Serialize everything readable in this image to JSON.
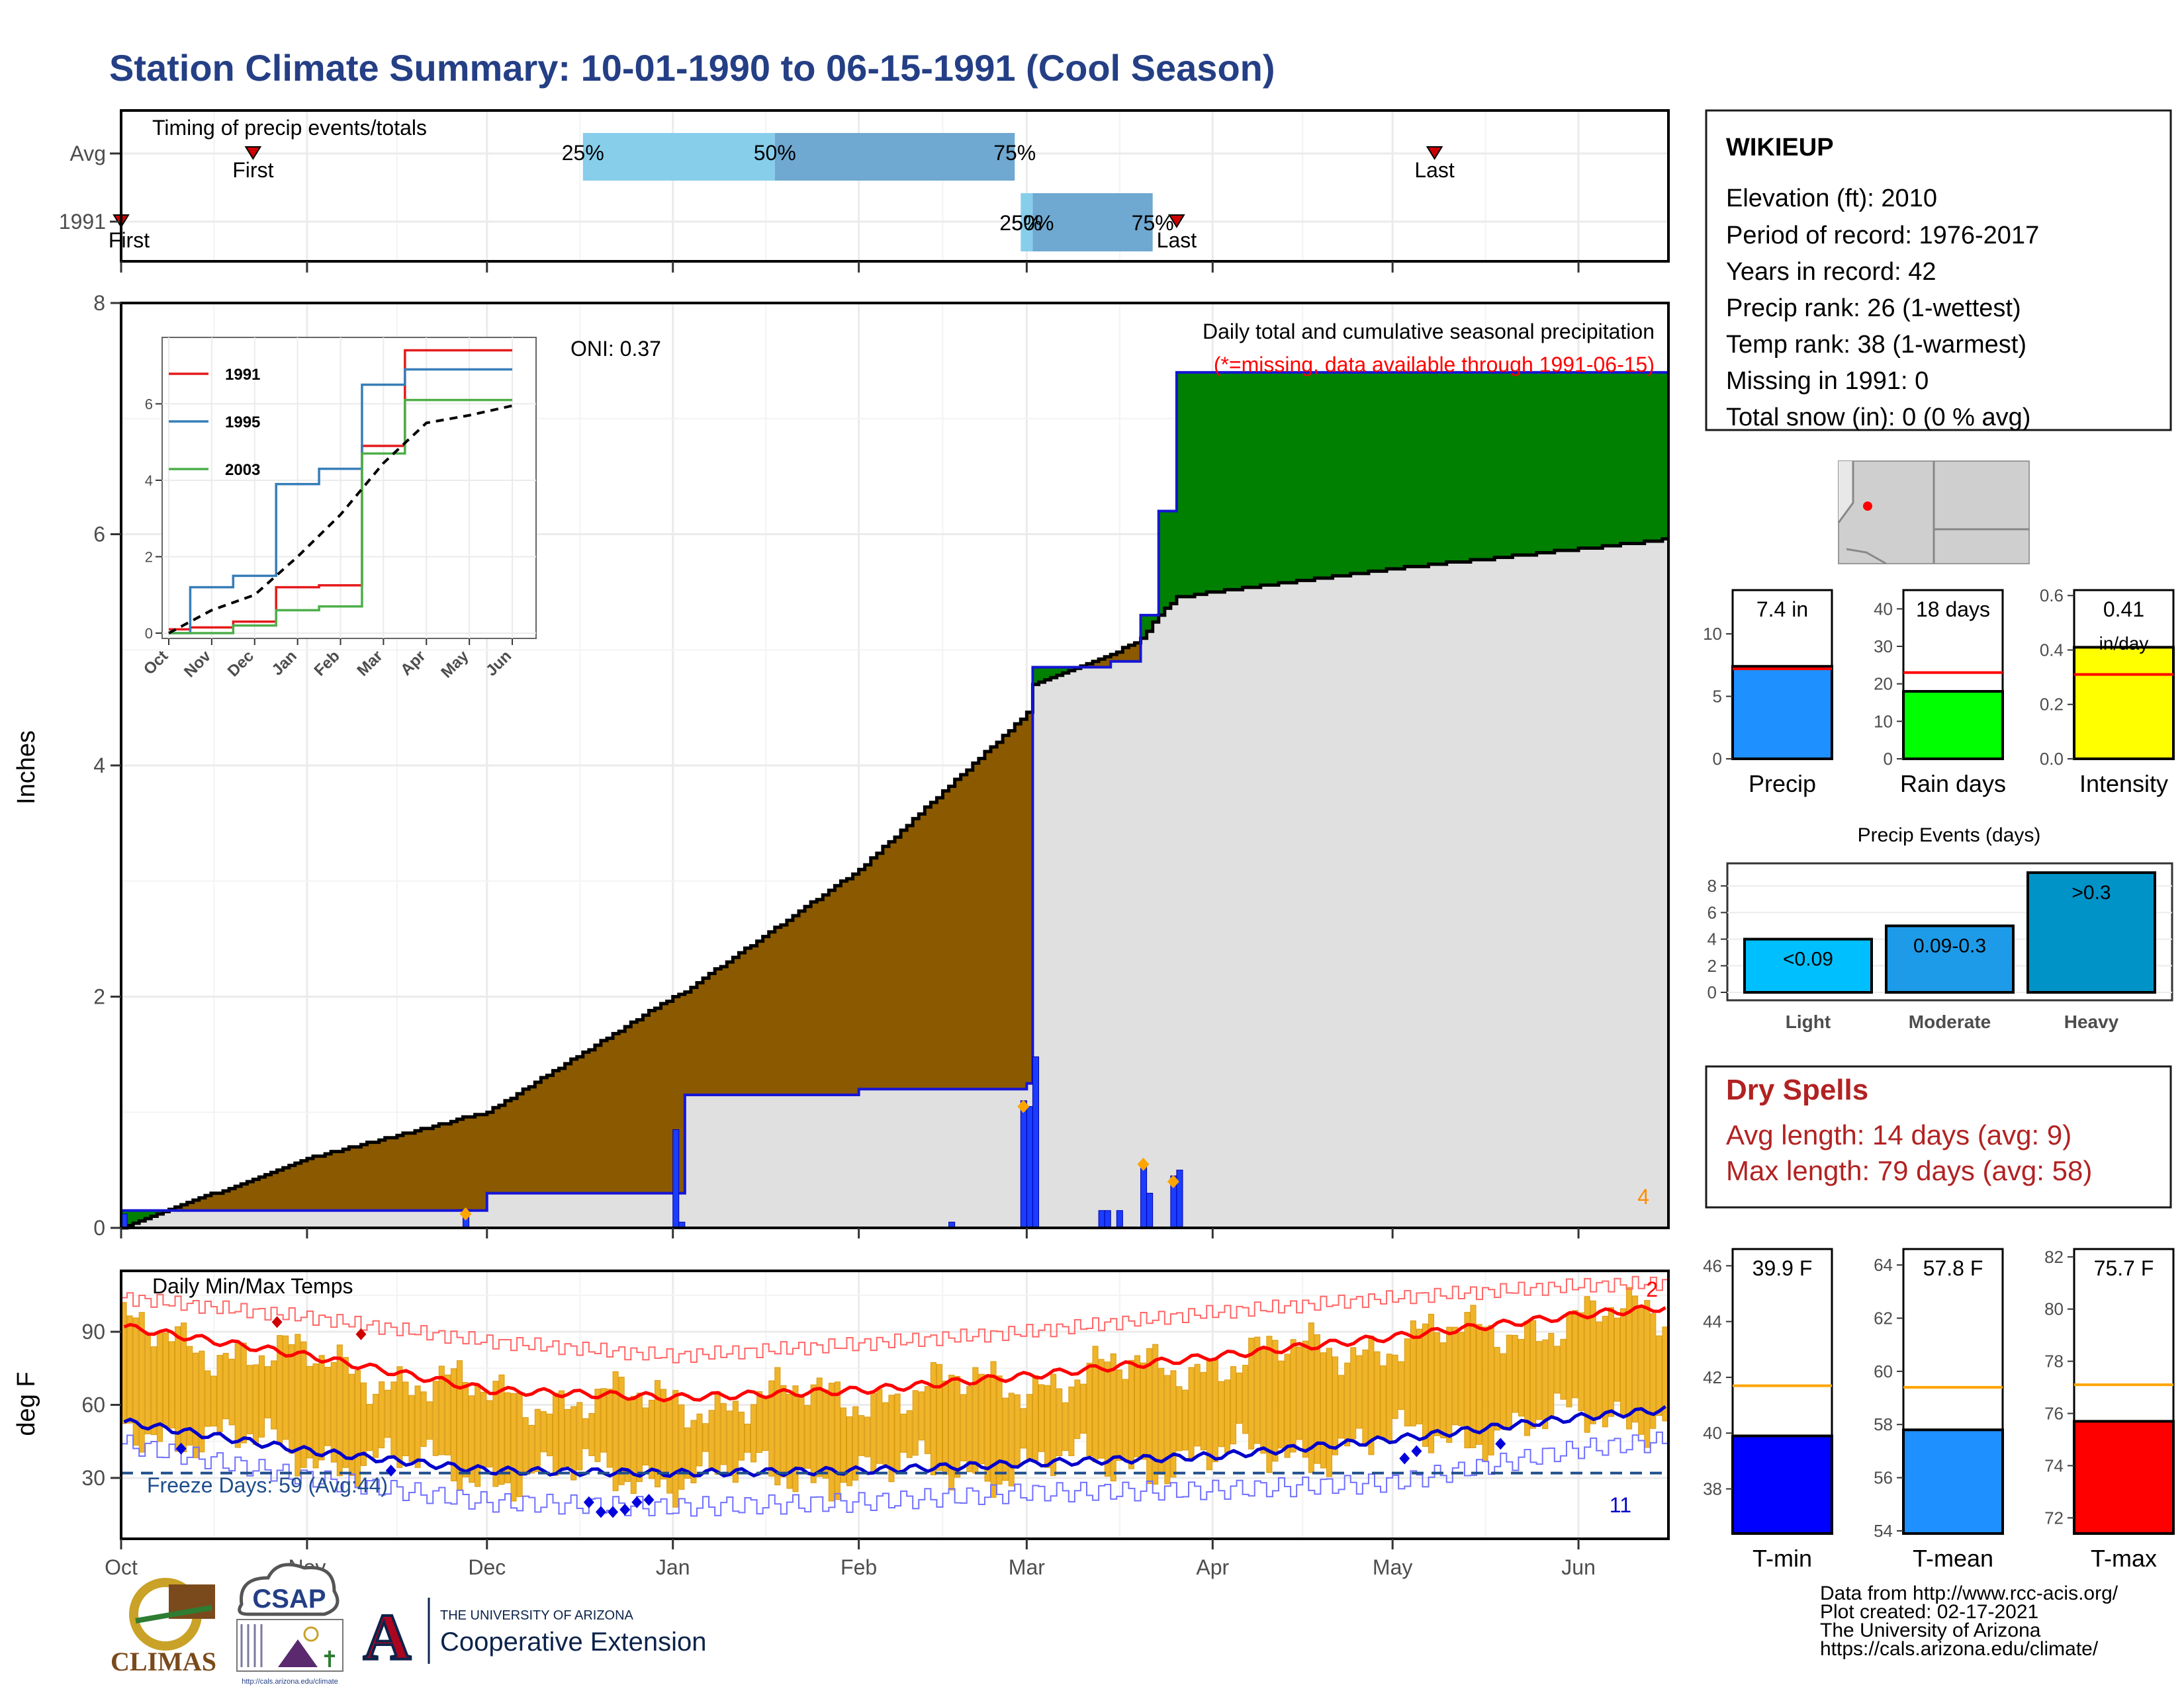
{
  "title": "Station Climate Summary: 10-01-1990 to 06-15-1991 (Cool Season)",
  "colors": {
    "title": "#243f85",
    "avg_precip": "#e0e0e0",
    "deficit": "#8b5a00",
    "surplus": "#008000",
    "season_line": "#1515d6",
    "bars": "#1a3dff",
    "dry": "#b22222",
    "extreme": "#ff8c00"
  },
  "timing": {
    "label": "Timing of precip events/totals",
    "rows": [
      "Avg",
      "1991"
    ],
    "avg": {
      "first": "First",
      "last": "Last",
      "q25": "25%",
      "q50": "50%",
      "q75": "75%",
      "first_date": "1990-10-23",
      "q25_date": "1990-12-17",
      "q50_date": "1991-01-18",
      "q75_date": "1991-02-27",
      "last_date": "1991-05-08"
    },
    "y1991": {
      "first": "First",
      "last": "Last",
      "q25": "25%",
      "q50": "50%",
      "q75": "75%",
      "first_date": "1990-10-01",
      "q25_date": "1991-02-28",
      "q50_date": "1991-03-02",
      "q75_date": "1991-03-22",
      "last_date": "1991-03-26"
    }
  },
  "precip_panel": {
    "ylabel": "Inches",
    "oni": "ONI: 0.37",
    "caption": "Daily total and cumulative seasonal precipitation",
    "missing_note": "(*=missing, data available through 1991-06-15)",
    "extreme_count": "4",
    "y_ticks": [
      "0",
      "2",
      "4",
      "6",
      "8"
    ]
  },
  "months": [
    "Oct",
    "Nov",
    "Dec",
    "Jan",
    "Feb",
    "Mar",
    "Apr",
    "May",
    "Jun"
  ],
  "inset": {
    "series": [
      "1991",
      "1995",
      "2003"
    ],
    "series_colors": [
      "#e41a1c",
      "#377eb8",
      "#4daf4a"
    ],
    "y_ticks": [
      "0",
      "2",
      "4",
      "6"
    ]
  },
  "temp_panel": {
    "label": "Daily Min/Max Temps",
    "ylabel": "deg F",
    "freeze": "Freeze Days: 59 (Avg:44)",
    "max_count": "2",
    "min_count": "11",
    "y_ticks": [
      "30",
      "60",
      "90"
    ]
  },
  "station": {
    "name": "WIKIEUP",
    "lines": [
      "Elevation (ft): 2010",
      "Period of record: 1976-2017",
      "Years in record: 42",
      "Precip rank: 26 (1-wettest)",
      "Temp rank: 38 (1-warmest)",
      "Missing in 1991: 0",
      "Total snow (in): 0 (0 % avg)"
    ]
  },
  "summary_bars": {
    "precip": {
      "label": "Precip",
      "value_text": "7.4 in",
      "value": 7.4,
      "avg": 7.2,
      "ymax": 13.5,
      "ticks": [
        "0",
        "5",
        "10"
      ],
      "color": "#1e90ff"
    },
    "rain_days": {
      "label": "Rain days",
      "value_text": "18 days",
      "value": 18,
      "avg": 23,
      "ymax": 45,
      "ticks": [
        "0",
        "10",
        "20",
        "30",
        "40"
      ],
      "color": "#00ff00"
    },
    "intensity": {
      "label": "Intensity",
      "value_text": "0.41",
      "value_unit": "in/day",
      "value": 0.41,
      "avg": 0.31,
      "ymax": 0.62,
      "ticks": [
        "0.0",
        "0.2",
        "0.4",
        "0.6"
      ],
      "color": "#ffff00"
    }
  },
  "events": {
    "title": "Precip Events (days)",
    "categories": [
      "Light",
      "Moderate",
      "Heavy"
    ],
    "ranges": [
      "<0.09",
      "0.09-0.3",
      ">0.3"
    ],
    "values": [
      4,
      5,
      9
    ],
    "colors": [
      "#00bfff",
      "#1e9be8",
      "#0093c8"
    ],
    "ticks": [
      "0",
      "2",
      "4",
      "6",
      "8"
    ]
  },
  "dry_spells": {
    "title": "Dry Spells",
    "avg": "Avg length: 14 days (avg: 9)",
    "max": "Max length: 79 days (avg: 58)"
  },
  "temp_bars": {
    "tmin": {
      "label": "T-min",
      "value_text": "39.9 F",
      "value": 39.9,
      "avg": 41.7,
      "ymin": 36.4,
      "ymax": 46.6,
      "ticks": [
        "38",
        "40",
        "42",
        "44",
        "46"
      ],
      "color": "#0000ff"
    },
    "tmean": {
      "label": "T-mean",
      "value_text": "57.8 F",
      "value": 57.8,
      "avg": 59.4,
      "ymin": 53.9,
      "ymax": 64.6,
      "ticks": [
        "54",
        "56",
        "58",
        "60",
        "62",
        "64"
      ],
      "color": "#1e90ff"
    },
    "tmax": {
      "label": "T-max",
      "value_text": "75.7 F",
      "value": 75.7,
      "avg": 77.1,
      "ymin": 71.4,
      "ymax": 82.3,
      "ticks": [
        "72",
        "74",
        "76",
        "78",
        "80",
        "82"
      ],
      "color": "#ff0000"
    }
  },
  "footer": {
    "lines": [
      "Data from http://www.rcc-acis.org/",
      "Plot created: 02-17-2021",
      "The University of Arizona",
      "https://cals.arizona.edu/climate/"
    ]
  },
  "logos": {
    "climas": "CLIMAS",
    "csap": "CSAP",
    "csap_url": "http://cals.arizona.edu/climate",
    "ua_small": "THE UNIVERSITY OF ARIZONA",
    "ua_big": "Cooperative Extension",
    "ua_letter": "A"
  },
  "chart_data": [
    {
      "type": "area",
      "title": "Daily total and cumulative seasonal precipitation",
      "ylabel": "Inches",
      "ylim": [
        0,
        8
      ],
      "x": [
        "1990-10-01",
        "1990-11-01",
        "1990-11-27",
        "1990-12-01",
        "1991-01-01",
        "1991-01-03",
        "1991-02-01",
        "1991-03-01",
        "1991-03-02",
        "1991-03-15",
        "1991-03-20",
        "1991-03-23",
        "1991-03-26",
        "1991-04-01",
        "1991-05-01",
        "1991-06-15"
      ],
      "series": [
        {
          "name": "1991",
          "values": [
            0.15,
            0.15,
            0.15,
            0.3,
            0.3,
            1.15,
            1.2,
            1.25,
            4.85,
            4.9,
            5.3,
            6.2,
            7.4,
            7.4,
            7.4,
            7.4
          ]
        },
        {
          "name": "Avg",
          "values": [
            0.0,
            0.6,
            0.95,
            1.0,
            2.0,
            2.05,
            3.1,
            4.45,
            4.7,
            4.95,
            5.1,
            5.3,
            5.45,
            5.5,
            5.7,
            5.95
          ]
        }
      ]
    },
    {
      "type": "bar",
      "title": "Daily precipitation",
      "ylabel": "Inches",
      "x": [
        "1990-10-01",
        "1990-11-27",
        "1991-01-01",
        "1991-01-02",
        "1991-02-16",
        "1991-02-28",
        "1991-03-01",
        "1991-03-02",
        "1991-03-13",
        "1991-03-14",
        "1991-03-16",
        "1991-03-20",
        "1991-03-21",
        "1991-03-25",
        "1991-03-26"
      ],
      "values": [
        0.12,
        0.12,
        0.85,
        0.05,
        0.05,
        1.1,
        1.05,
        1.48,
        0.15,
        0.15,
        0.15,
        0.55,
        0.3,
        0.45,
        0.5
      ]
    },
    {
      "type": "line",
      "title": "Daily Min/Max Temps",
      "ylabel": "deg F",
      "ylim": [
        5,
        115
      ],
      "x": [
        "1990-10-01",
        "1990-11-01",
        "1990-12-01",
        "1991-01-01",
        "1991-02-01",
        "1991-03-01",
        "1991-04-01",
        "1991-05-01",
        "1991-06-01",
        "1991-06-15"
      ],
      "series": [
        {
          "name": "Avg max",
          "values": [
            92,
            80,
            66,
            63,
            66,
            72,
            80,
            88,
            97,
            100
          ]
        },
        {
          "name": "Avg min",
          "values": [
            53,
            41,
            33,
            32,
            33,
            36,
            39,
            46,
            55,
            58
          ]
        },
        {
          "name": "Record max",
          "values": [
            104,
            96,
            86,
            80,
            85,
            90,
            98,
            104,
            109,
            110
          ]
        },
        {
          "name": "Record min",
          "values": [
            44,
            30,
            20,
            18,
            20,
            24,
            25,
            28,
            42,
            45
          ]
        },
        {
          "name": "Freeze",
          "values": [
            32,
            32,
            32,
            32,
            32,
            32,
            32,
            32,
            32,
            32
          ]
        }
      ]
    },
    {
      "type": "line",
      "title": "Inset cumulative precipitation",
      "ylim": [
        0,
        7.5
      ],
      "x": [
        "Oct",
        "Nov",
        "Dec",
        "Jan",
        "Feb",
        "Mar",
        "Apr",
        "May",
        "Jun"
      ],
      "series": [
        {
          "name": "1991",
          "values": [
            0.1,
            0.15,
            0.3,
            1.2,
            1.25,
            4.9,
            7.4,
            7.4,
            7.4
          ]
        },
        {
          "name": "1995",
          "values": [
            0.0,
            1.2,
            1.5,
            3.9,
            4.3,
            6.5,
            6.9,
            6.9,
            6.9
          ]
        },
        {
          "name": "2003",
          "values": [
            0.0,
            0.0,
            0.2,
            0.6,
            0.7,
            4.7,
            6.1,
            6.1,
            6.1
          ]
        },
        {
          "name": "Avg",
          "values": [
            0.0,
            0.6,
            1.0,
            2.0,
            3.1,
            4.45,
            5.5,
            5.7,
            5.95
          ]
        }
      ]
    }
  ]
}
